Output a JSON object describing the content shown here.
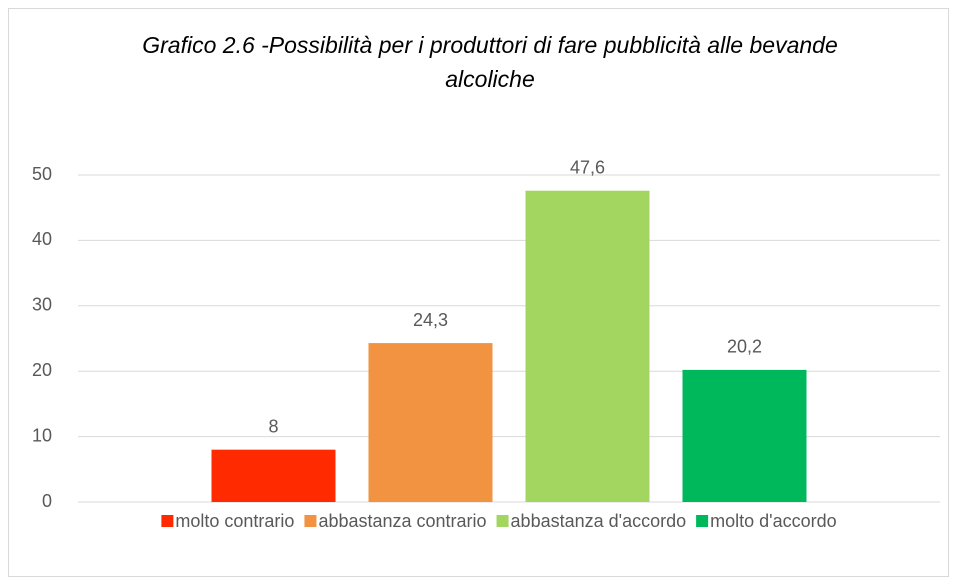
{
  "chart_data": {
    "type": "bar",
    "title": "Grafico 2.6 -Possibilità per i produttori di fare pubblicità alle bevande alcoliche",
    "categories": [
      null
    ],
    "series": [
      {
        "name": "molto contrario",
        "color": "#ff2a00",
        "values": [
          8
        ]
      },
      {
        "name": "abbastanza contrario",
        "color": "#f29341",
        "values": [
          24.3
        ],
        "value_labels": [
          "24,3"
        ]
      },
      {
        "name": "abbastanza d'accordo",
        "color": "#a2d660",
        "values": [
          47.6
        ],
        "value_labels": [
          "47,6"
        ]
      },
      {
        "name": "molto d'accordo",
        "color": "#00b85c",
        "values": [
          20.2
        ],
        "value_labels": [
          "20,2"
        ]
      }
    ],
    "ylim": [
      0,
      50
    ],
    "yticks": [
      0,
      10,
      20,
      30,
      40,
      50
    ],
    "grid": true,
    "legend": "bottom"
  }
}
